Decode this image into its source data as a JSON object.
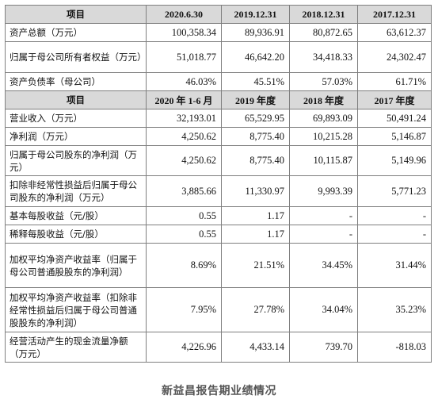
{
  "balance_header": [
    "项目",
    "2020.6.30",
    "2019.12.31",
    "2018.12.31",
    "2017.12.31"
  ],
  "balance_rows": [
    [
      "资产总额（万元）",
      "100,358.34",
      "89,936.91",
      "80,872.65",
      "63,612.37"
    ],
    [
      "归属于母公司所有者权益（万元）",
      "51,018.77",
      "46,642.20",
      "34,418.33",
      "24,302.47"
    ],
    [
      "资产负债率（母公司）",
      "46.03%",
      "45.51%",
      "57.03%",
      "61.71%"
    ]
  ],
  "income_header": [
    "项目",
    "2020 年 1-6 月",
    "2019 年度",
    "2018 年度",
    "2017 年度"
  ],
  "income_rows": [
    [
      "营业收入（万元）",
      "32,193.01",
      "65,529.95",
      "69,893.09",
      "50,491.24"
    ],
    [
      "净利润（万元）",
      "4,250.62",
      "8,775.40",
      "10,215.28",
      "5,146.87"
    ],
    [
      "归属于母公司股东的净利润（万元）",
      "4,250.62",
      "8,775.40",
      "10,115.87",
      "5,149.96"
    ],
    [
      "扣除非经常性损益后归属于母公司股东的净利润（万元）",
      "3,885.66",
      "11,330.97",
      "9,993.39",
      "5,771.23"
    ],
    [
      "基本每股收益（元/股）",
      "0.55",
      "1.17",
      "-",
      "-"
    ],
    [
      "稀释每股收益（元/股）",
      "0.55",
      "1.17",
      "-",
      "-"
    ],
    [
      "加权平均净资产收益率（归属于母公司普通股股东的净利润）",
      "8.69%",
      "21.51%",
      "34.45%",
      "31.44%"
    ],
    [
      "加权平均净资产收益率（扣除非经常性损益后归属于母公司普通股股东的净利润）",
      "7.95%",
      "27.78%",
      "34.04%",
      "35.23%"
    ],
    [
      "经营活动产生的现金流量净额（万元）",
      "4,226.96",
      "4,433.14",
      "739.70",
      "-818.03"
    ]
  ],
  "caption": "新益昌报告期业绩情况"
}
